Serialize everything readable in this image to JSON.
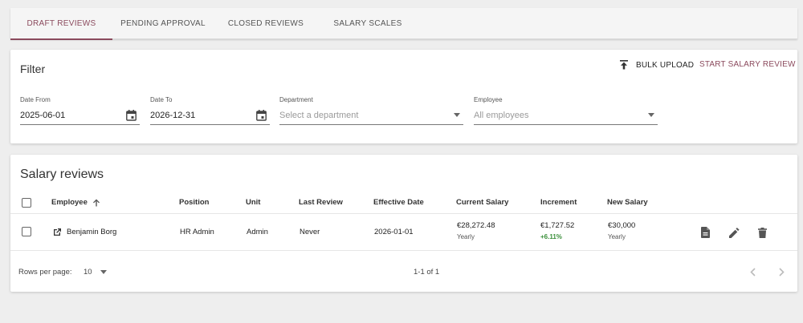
{
  "tabs": [
    {
      "label": "DRAFT REVIEWS"
    },
    {
      "label": "PENDING APPROVAL"
    },
    {
      "label": "CLOSED REVIEWS"
    },
    {
      "label": "SALARY SCALES"
    }
  ],
  "filter": {
    "title": "Filter",
    "bulk_upload_label": "BULK UPLOAD",
    "start_review_label": "START SALARY REVIEW",
    "date_from_label": "Date From",
    "date_from_value": "2025-06-01",
    "date_to_label": "Date To",
    "date_to_value": "2026-12-31",
    "department_label": "Department",
    "department_placeholder": "Select a department",
    "employee_label": "Employee",
    "employee_value": "All employees"
  },
  "reviews": {
    "title": "Salary reviews",
    "columns": {
      "employee": "Employee",
      "position": "Position",
      "unit": "Unit",
      "last_review": "Last Review",
      "effective_date": "Effective Date",
      "current_salary": "Current Salary",
      "increment": "Increment",
      "new_salary": "New Salary"
    },
    "rows": [
      {
        "employee": "Benjamin Borg",
        "position": "HR Admin",
        "unit": "Admin",
        "last_review": "Never",
        "effective_date": "2026-01-01",
        "current_salary": "€28,272.48",
        "current_salary_period": "Yearly",
        "increment": "€1,727.52",
        "increment_pct": "+6.11%",
        "new_salary": "€30,000",
        "new_salary_period": "Yearly"
      }
    ],
    "footer": {
      "rows_per_page_label": "Rows per page:",
      "rows_per_page_value": "10",
      "range_text": "1-1 of 1"
    }
  },
  "colors": {
    "accent": "#8b4a5d",
    "positive": "#3a8f3a"
  },
  "icons": [
    "upload-icon",
    "calendar-icon",
    "sort-arrow-up-icon",
    "open-external-icon",
    "document-icon",
    "edit-icon",
    "delete-icon",
    "chevron-left-icon",
    "chevron-right-icon"
  ]
}
